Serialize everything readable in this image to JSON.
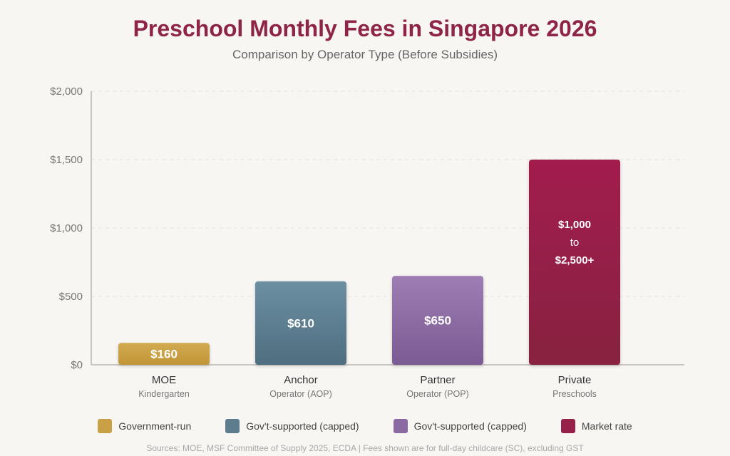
{
  "chart_data": {
    "type": "bar",
    "title": "Preschool Monthly Fees in Singapore 2026",
    "subtitle": "Comparison by Operator Type (Before Subsidies)",
    "ylim": [
      0,
      2000
    ],
    "yticks": [
      0,
      500,
      1000,
      1500,
      2000
    ],
    "ytick_labels": [
      "$0",
      "$500",
      "$1,000",
      "$1,500",
      "$2,000"
    ],
    "grid": true,
    "categories": [
      {
        "name": "MOE",
        "sub": "Kindergarten"
      },
      {
        "name": "Anchor",
        "sub": "Operator (AOP)"
      },
      {
        "name": "Partner",
        "sub": "Operator (POP)"
      },
      {
        "name": "Private",
        "sub": "Preschools"
      }
    ],
    "bars": [
      {
        "value": 160,
        "label": [
          "$160"
        ],
        "color_top": "#d2aa50",
        "color_bottom": "#c09537"
      },
      {
        "value": 610,
        "label": [
          "$610"
        ],
        "color_top": "#6b8fa1",
        "color_bottom": "#4f6e80"
      },
      {
        "value": 650,
        "label": [
          "$650"
        ],
        "color_top": "#9d7db3",
        "color_bottom": "#7b5a93"
      },
      {
        "value": 1500,
        "range": [
          1000,
          2500
        ],
        "label": [
          "$1,000",
          "to",
          "$2,500+"
        ],
        "color_top": "#a21f4e",
        "color_bottom": "#872040"
      }
    ],
    "legend": [
      {
        "label": "Government-run",
        "color": "#c9a045"
      },
      {
        "label": "Gov't-supported (capped)",
        "color": "#5d7d8f"
      },
      {
        "label": "Gov't-supported (capped)",
        "color": "#8b6aa4"
      },
      {
        "label": "Market rate",
        "color": "#96224a"
      }
    ],
    "source": "Sources: MOE, MSF Committee of Supply 2025, ECDA | Fees shown are for full-day childcare (SC), excluding GST"
  }
}
